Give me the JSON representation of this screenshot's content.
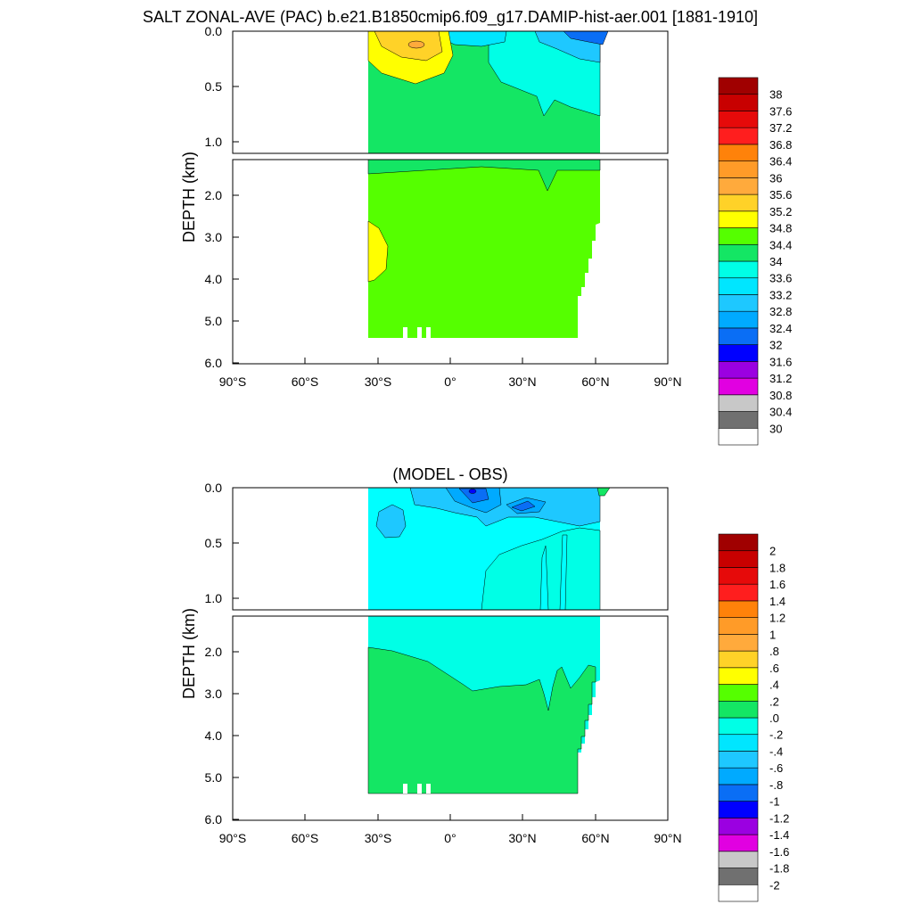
{
  "page": {
    "title": "SALT ZONAL-AVE (PAC) b.e21.B1850cmip6.f09_g17.DAMIP-hist-aer.001 [1881-1910]"
  },
  "colors": {
    "salt_scale": [
      "#ffffff",
      "#707070",
      "#c8c8c8",
      "#e100e1",
      "#9b00e1",
      "#0000ff",
      "#0a6ef5",
      "#00aaff",
      "#1ec8ff",
      "#00e6ff",
      "#00ffe6",
      "#14e664",
      "#55ff00",
      "#ffff00",
      "#ffd228",
      "#ffaa3c",
      "#ff9b28",
      "#ff820a",
      "#ff1e1e",
      "#e60a0a",
      "#c80000",
      "#a00000"
    ],
    "diff_scale": [
      "#ffffff",
      "#707070",
      "#c8c8c8",
      "#e100e1",
      "#9b00e1",
      "#0000ff",
      "#0a6ef5",
      "#00aaff",
      "#1ec8ff",
      "#00e6ff",
      "#00ffe6",
      "#14e664",
      "#55ff00",
      "#ffff00",
      "#ffd228",
      "#ffaa3c",
      "#ff9b28",
      "#ff820a",
      "#ff1e1e",
      "#e60a0a",
      "#c80000",
      "#a00000"
    ]
  },
  "chart_data": [
    {
      "type": "heatmap",
      "title": "",
      "xlabel": "",
      "ylabel": "DEPTH (km)",
      "x_ticks": [
        "90°S",
        "60°S",
        "30°S",
        "0°",
        "30°N",
        "60°N",
        "90°N"
      ],
      "y_ticks_upper": [
        "0.0",
        "0.5",
        "1.0"
      ],
      "y_ticks_lower": [
        "2.0",
        "3.0",
        "4.0",
        "5.0",
        "6.0"
      ],
      "xlim": [
        -90,
        90
      ],
      "ylim_km": [
        0,
        6
      ],
      "data_extent_lat": [
        -34,
        62
      ],
      "legend_levels": [
        "38",
        "37.6",
        "37.2",
        "36.8",
        "36.4",
        "36",
        "35.6",
        "35.2",
        "34.8",
        "34.4",
        "34",
        "33.6",
        "33.2",
        "32.8",
        "32.4",
        "32",
        "31.6",
        "31.2",
        "30.8",
        "30.4",
        "30"
      ],
      "legend_position": "right"
    },
    {
      "type": "heatmap",
      "title": "(MODEL - OBS)",
      "xlabel": "",
      "ylabel": "DEPTH (km)",
      "x_ticks": [
        "90°S",
        "60°S",
        "30°S",
        "0°",
        "30°N",
        "60°N",
        "90°N"
      ],
      "y_ticks_upper": [
        "0.0",
        "0.5",
        "1.0"
      ],
      "y_ticks_lower": [
        "2.0",
        "3.0",
        "4.0",
        "5.0",
        "6.0"
      ],
      "xlim": [
        -90,
        90
      ],
      "ylim_km": [
        0,
        6
      ],
      "data_extent_lat": [
        -34,
        62
      ],
      "legend_levels": [
        "2",
        "1.8",
        "1.6",
        "1.4",
        "1.2",
        "1",
        ".8",
        ".6",
        ".4",
        ".2",
        ".0",
        "-.2",
        "-.4",
        "-.6",
        "-.8",
        "-1",
        "-1.2",
        "-1.4",
        "-1.6",
        "-1.8",
        "-2"
      ],
      "legend_position": "right"
    }
  ]
}
